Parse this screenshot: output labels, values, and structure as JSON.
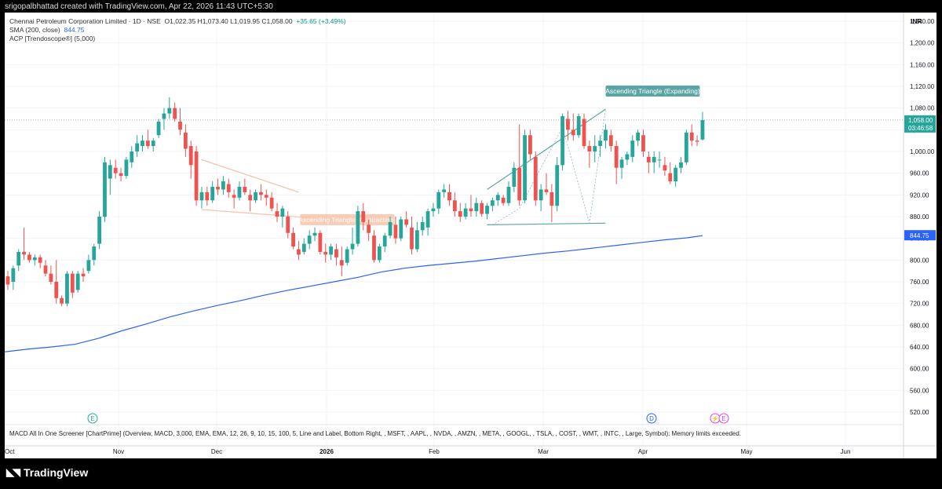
{
  "header": {
    "created_by": "srigopalbhattad created with TradingView.com, Apr 22, 2026 11:43 UTC+5:30"
  },
  "legend": {
    "title": "Chennai Petroleum Corporation Limited · 1D · NSE",
    "ohlc": "O1,022.35  H1,073.40  L1,019.95  C1,058.00",
    "change": "+35.65 (+3.49%)",
    "sma_label": "SMA (200, close)",
    "sma_value": "844.75",
    "acp_label": "ACP [Trendoscope®] (5,000)"
  },
  "currency": "INR",
  "price_tag": {
    "value": "1,058.00",
    "countdown": "03:46:58"
  },
  "sma_tag": "844.75",
  "patterns": [
    {
      "label": "Ascending Triangle (Expanding)"
    },
    {
      "label": "Ascending Triangle (Contracting)"
    }
  ],
  "event_markers": {
    "earnings": "E",
    "dividend": "D",
    "split": "⚡",
    "earnings2": "E"
  },
  "indicator_footer": "MACD All In One Screener [ChartPrime] (Overview, MACD, 3,000, EMA, EMA, 12, 26, 9, 10, 15, 100, 5, Line and Label, Bottom Right, , MSFT, , AAPL, , NVDA, , AMZN, , META, , GOOGL, , TSLA, , COST, , WMT, , INTC, , Large, Symbol): Memory limits exceeded.",
  "brand": "TradingView",
  "colors": {
    "up": "#26a69a",
    "down": "#ef5350",
    "sma": "#2962ff",
    "pattern_teal": "#5aa5a5",
    "pattern_peach": "#f7c3a8"
  },
  "chart_data": {
    "type": "candlestick",
    "ylim": [
      500,
      1240
    ],
    "y_ticks": [
      "1,240.00",
      "1,200.00",
      "1,160.00",
      "1,120.00",
      "1,080.00",
      "1,040.00",
      "1,000.00",
      "960.00",
      "920.00",
      "880.00",
      "840.00",
      "800.00",
      "760.00",
      "720.00",
      "680.00",
      "640.00",
      "600.00",
      "560.00",
      "520.00"
    ],
    "x_ticks": [
      "Oct",
      "Nov",
      "Dec",
      "2026",
      "Feb",
      "Mar",
      "Apr",
      "May",
      "Jun"
    ],
    "candles": [
      [
        770,
        780,
        745,
        755
      ],
      [
        760,
        790,
        745,
        785
      ],
      [
        790,
        820,
        780,
        815
      ],
      [
        815,
        860,
        800,
        810
      ],
      [
        810,
        815,
        795,
        800
      ],
      [
        800,
        810,
        790,
        805
      ],
      [
        805,
        810,
        785,
        795
      ],
      [
        790,
        800,
        770,
        775
      ],
      [
        775,
        790,
        755,
        760
      ],
      [
        760,
        800,
        720,
        730
      ],
      [
        730,
        735,
        715,
        720
      ],
      [
        720,
        780,
        715,
        775
      ],
      [
        775,
        780,
        730,
        740
      ],
      [
        745,
        780,
        740,
        775
      ],
      [
        775,
        785,
        760,
        770
      ],
      [
        780,
        810,
        775,
        800
      ],
      [
        800,
        830,
        790,
        825
      ],
      [
        830,
        890,
        820,
        880
      ],
      [
        880,
        990,
        870,
        980
      ],
      [
        950,
        985,
        920,
        975
      ],
      [
        970,
        985,
        950,
        960
      ],
      [
        960,
        970,
        945,
        955
      ],
      [
        955,
        990,
        950,
        985
      ],
      [
        980,
        1010,
        970,
        1000
      ],
      [
        1000,
        1030,
        990,
        1015
      ],
      [
        1010,
        1030,
        1000,
        1020
      ],
      [
        1020,
        1040,
        1005,
        1010
      ],
      [
        1010,
        1025,
        1000,
        1020
      ],
      [
        1030,
        1060,
        1025,
        1055
      ],
      [
        1060,
        1080,
        1040,
        1070
      ],
      [
        1070,
        1100,
        1060,
        1080
      ],
      [
        1080,
        1090,
        1055,
        1060
      ],
      [
        1055,
        1080,
        1030,
        1040
      ],
      [
        1035,
        1050,
        990,
        1005
      ],
      [
        1010,
        1020,
        950,
        975
      ],
      [
        1000,
        1010,
        900,
        910
      ],
      [
        910,
        935,
        895,
        925
      ],
      [
        925,
        935,
        900,
        910
      ],
      [
        910,
        945,
        905,
        935
      ],
      [
        935,
        950,
        920,
        930
      ],
      [
        930,
        955,
        920,
        945
      ],
      [
        940,
        950,
        915,
        925
      ],
      [
        920,
        930,
        895,
        915
      ],
      [
        915,
        945,
        910,
        935
      ],
      [
        935,
        950,
        920,
        925
      ],
      [
        920,
        930,
        890,
        910
      ],
      [
        910,
        930,
        905,
        925
      ],
      [
        925,
        940,
        910,
        920
      ],
      [
        920,
        930,
        900,
        915
      ],
      [
        915,
        925,
        890,
        895
      ],
      [
        890,
        905,
        870,
        880
      ],
      [
        880,
        900,
        860,
        895
      ],
      [
        880,
        890,
        840,
        850
      ],
      [
        850,
        860,
        820,
        825
      ],
      [
        820,
        835,
        800,
        810
      ],
      [
        815,
        840,
        810,
        830
      ],
      [
        830,
        855,
        820,
        845
      ],
      [
        845,
        860,
        835,
        850
      ],
      [
        850,
        855,
        810,
        815
      ],
      [
        815,
        830,
        795,
        810
      ],
      [
        810,
        830,
        800,
        825
      ],
      [
        820,
        830,
        790,
        805
      ],
      [
        800,
        825,
        770,
        790
      ],
      [
        795,
        825,
        790,
        820
      ],
      [
        820,
        860,
        810,
        830
      ],
      [
        830,
        900,
        825,
        890
      ],
      [
        890,
        905,
        855,
        870
      ],
      [
        865,
        875,
        835,
        850
      ],
      [
        845,
        855,
        795,
        800
      ],
      [
        800,
        830,
        795,
        825
      ],
      [
        825,
        850,
        815,
        845
      ],
      [
        845,
        880,
        840,
        870
      ],
      [
        865,
        880,
        830,
        840
      ],
      [
        840,
        880,
        835,
        875
      ],
      [
        875,
        890,
        860,
        865
      ],
      [
        860,
        880,
        810,
        820
      ],
      [
        820,
        870,
        815,
        855
      ],
      [
        855,
        880,
        845,
        870
      ],
      [
        860,
        895,
        845,
        890
      ],
      [
        890,
        905,
        880,
        895
      ],
      [
        895,
        930,
        885,
        925
      ],
      [
        925,
        940,
        915,
        930
      ],
      [
        925,
        940,
        900,
        910
      ],
      [
        910,
        925,
        880,
        890
      ],
      [
        890,
        905,
        870,
        880
      ],
      [
        880,
        905,
        875,
        895
      ],
      [
        895,
        920,
        880,
        890
      ],
      [
        890,
        915,
        880,
        905
      ],
      [
        905,
        910,
        880,
        885
      ],
      [
        885,
        905,
        875,
        900
      ],
      [
        900,
        915,
        890,
        910
      ],
      [
        910,
        925,
        900,
        920
      ],
      [
        915,
        920,
        900,
        905
      ],
      [
        905,
        945,
        900,
        935
      ],
      [
        935,
        980,
        925,
        970
      ],
      [
        970,
        1050,
        900,
        910
      ],
      [
        910,
        1040,
        905,
        1030
      ],
      [
        1030,
        1040,
        985,
        995
      ],
      [
        990,
        1000,
        900,
        910
      ],
      [
        910,
        940,
        890,
        930
      ],
      [
        930,
        960,
        920,
        925
      ],
      [
        925,
        940,
        870,
        900
      ],
      [
        900,
        990,
        890,
        975
      ],
      [
        975,
        1070,
        965,
        1065
      ],
      [
        1060,
        1075,
        1020,
        1040
      ],
      [
        1040,
        1070,
        1020,
        1030
      ],
      [
        1030,
        1070,
        1025,
        1065
      ],
      [
        1060,
        1070,
        1005,
        1010
      ],
      [
        1010,
        1020,
        970,
        1000
      ],
      [
        1000,
        1030,
        980,
        1010
      ],
      [
        1010,
        1030,
        990,
        1020
      ],
      [
        1020,
        1050,
        1005,
        1040
      ],
      [
        1030,
        1040,
        1000,
        1010
      ],
      [
        1010,
        1020,
        940,
        970
      ],
      [
        970,
        990,
        950,
        985
      ],
      [
        985,
        1000,
        975,
        995
      ],
      [
        990,
        1030,
        980,
        1020
      ],
      [
        1020,
        1040,
        1010,
        1035
      ],
      [
        1030,
        1040,
        990,
        1000
      ],
      [
        990,
        1000,
        960,
        980
      ],
      [
        980,
        1000,
        960,
        990
      ],
      [
        985,
        1000,
        970,
        985
      ],
      [
        975,
        990,
        955,
        965
      ],
      [
        960,
        980,
        940,
        945
      ],
      [
        945,
        975,
        935,
        970
      ],
      [
        970,
        990,
        960,
        980
      ],
      [
        980,
        1040,
        975,
        1035
      ],
      [
        1035,
        1050,
        1010,
        1020
      ],
      [
        1020,
        1030,
        1010,
        1018
      ],
      [
        1022,
        1073,
        1020,
        1058
      ]
    ],
    "sma": {
      "name": "SMA (200, close)",
      "start_value": 631,
      "end_value": 845,
      "points": [
        [
          0,
          631
        ],
        [
          15,
          636
        ],
        [
          30,
          640
        ],
        [
          45,
          645
        ],
        [
          60,
          656
        ],
        [
          75,
          670
        ],
        [
          90,
          682
        ],
        [
          105,
          695
        ],
        [
          120,
          706
        ],
        [
          135,
          716
        ],
        [
          150,
          725
        ],
        [
          165,
          735
        ],
        [
          180,
          744
        ],
        [
          195,
          752
        ],
        [
          210,
          760
        ],
        [
          225,
          768
        ],
        [
          240,
          778
        ],
        [
          255,
          785
        ],
        [
          270,
          790
        ],
        [
          285,
          794
        ],
        [
          300,
          798
        ],
        [
          315,
          803
        ],
        [
          330,
          808
        ],
        [
          345,
          813
        ],
        [
          360,
          817
        ],
        [
          375,
          822
        ],
        [
          390,
          827
        ],
        [
          405,
          832
        ],
        [
          420,
          837
        ],
        [
          435,
          841
        ],
        [
          445,
          845
        ]
      ]
    },
    "last_price": 1058.0
  }
}
